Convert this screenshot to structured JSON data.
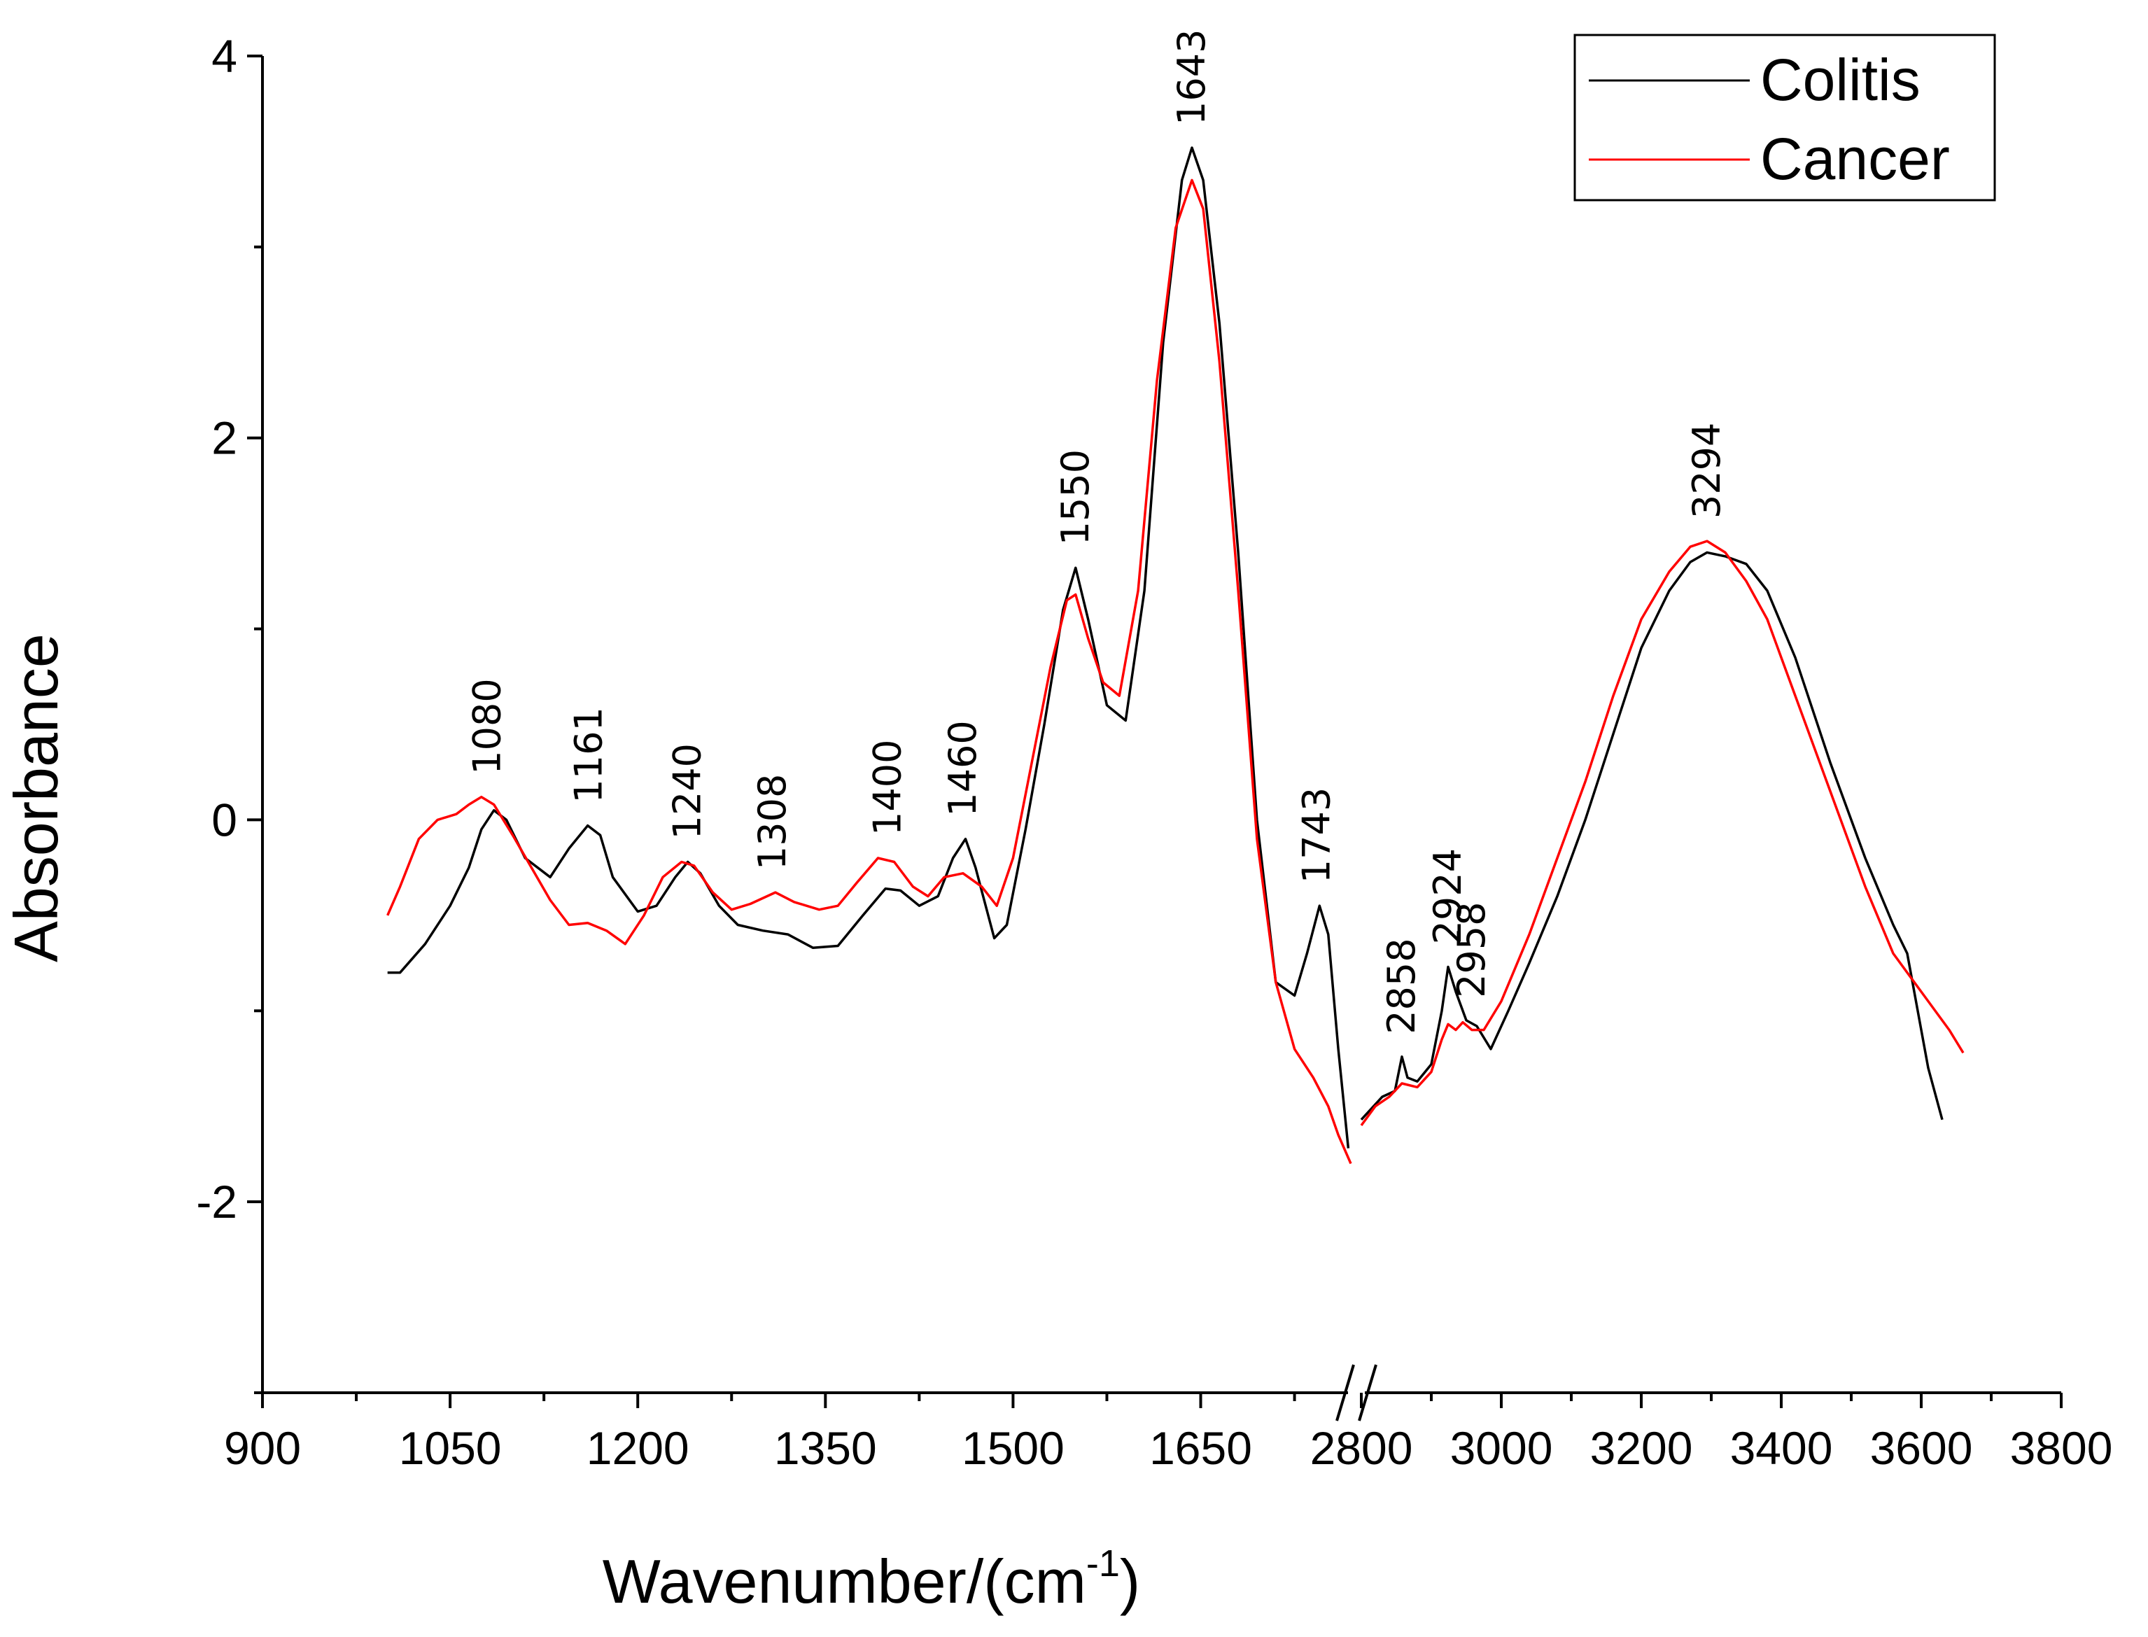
{
  "chart_data": {
    "type": "line",
    "title": "",
    "xlabel": "Wavenumber/(cm",
    "xlabel_superscript": "-1",
    "xlabel_close": ")",
    "ylabel": "Absorbance",
    "ylim": [
      -3,
      4
    ],
    "y_ticks": [
      "-2",
      "0",
      "2",
      "4"
    ],
    "x_break": true,
    "x_segments": [
      {
        "xlim": [
          900,
          1770
        ],
        "ticks": [
          "900",
          "1050",
          "1200",
          "1350",
          "1500",
          "1650"
        ]
      },
      {
        "xlim": [
          2800,
          3800
        ],
        "ticks": [
          "2800",
          "3000",
          "3200",
          "3400",
          "3600",
          "3800"
        ]
      }
    ],
    "legend": {
      "position": "top-right",
      "entries": [
        "Colitis",
        "Cancer"
      ]
    },
    "colors": {
      "Colitis": "#000000",
      "Cancer": "#ff0000"
    },
    "peak_labels": [
      "1080",
      "1161",
      "1240",
      "1308",
      "1400",
      "1460",
      "1550",
      "1643",
      "1743",
      "2858",
      "2924",
      "2958",
      "3294"
    ],
    "series": [
      {
        "name": "Colitis",
        "segment1": [
          [
            1000,
            -0.8
          ],
          [
            1010,
            -0.8
          ],
          [
            1030,
            -0.65
          ],
          [
            1050,
            -0.45
          ],
          [
            1065,
            -0.25
          ],
          [
            1075,
            -0.05
          ],
          [
            1085,
            0.05
          ],
          [
            1095,
            0.0
          ],
          [
            1110,
            -0.2
          ],
          [
            1130,
            -0.3
          ],
          [
            1145,
            -0.15
          ],
          [
            1160,
            -0.03
          ],
          [
            1170,
            -0.08
          ],
          [
            1180,
            -0.3
          ],
          [
            1200,
            -0.48
          ],
          [
            1215,
            -0.45
          ],
          [
            1230,
            -0.3
          ],
          [
            1240,
            -0.22
          ],
          [
            1250,
            -0.28
          ],
          [
            1265,
            -0.45
          ],
          [
            1280,
            -0.55
          ],
          [
            1300,
            -0.58
          ],
          [
            1320,
            -0.6
          ],
          [
            1340,
            -0.67
          ],
          [
            1360,
            -0.66
          ],
          [
            1380,
            -0.5
          ],
          [
            1398,
            -0.36
          ],
          [
            1410,
            -0.37
          ],
          [
            1425,
            -0.45
          ],
          [
            1440,
            -0.4
          ],
          [
            1452,
            -0.2
          ],
          [
            1462,
            -0.1
          ],
          [
            1470,
            -0.25
          ],
          [
            1485,
            -0.62
          ],
          [
            1495,
            -0.55
          ],
          [
            1510,
            -0.05
          ],
          [
            1525,
            0.5
          ],
          [
            1540,
            1.1
          ],
          [
            1550,
            1.32
          ],
          [
            1560,
            1.05
          ],
          [
            1575,
            0.6
          ],
          [
            1590,
            0.52
          ],
          [
            1605,
            1.2
          ],
          [
            1620,
            2.5
          ],
          [
            1635,
            3.35
          ],
          [
            1643,
            3.52
          ],
          [
            1652,
            3.35
          ],
          [
            1665,
            2.6
          ],
          [
            1680,
            1.4
          ],
          [
            1695,
            0.0
          ],
          [
            1710,
            -0.85
          ],
          [
            1725,
            -0.92
          ],
          [
            1735,
            -0.7
          ],
          [
            1745,
            -0.45
          ],
          [
            1752,
            -0.6
          ],
          [
            1760,
            -1.2
          ],
          [
            1768,
            -1.72
          ]
        ],
        "segment2": [
          [
            2800,
            -1.57
          ],
          [
            2830,
            -1.45
          ],
          [
            2848,
            -1.42
          ],
          [
            2858,
            -1.24
          ],
          [
            2866,
            -1.35
          ],
          [
            2880,
            -1.37
          ],
          [
            2900,
            -1.28
          ],
          [
            2915,
            -1.0
          ],
          [
            2924,
            -0.77
          ],
          [
            2935,
            -0.9
          ],
          [
            2950,
            -1.05
          ],
          [
            2965,
            -1.08
          ],
          [
            2985,
            -1.2
          ],
          [
            3010,
            -1.0
          ],
          [
            3040,
            -0.75
          ],
          [
            3080,
            -0.4
          ],
          [
            3120,
            0.0
          ],
          [
            3160,
            0.45
          ],
          [
            3200,
            0.9
          ],
          [
            3240,
            1.2
          ],
          [
            3270,
            1.35
          ],
          [
            3294,
            1.4
          ],
          [
            3320,
            1.38
          ],
          [
            3350,
            1.34
          ],
          [
            3380,
            1.2
          ],
          [
            3420,
            0.85
          ],
          [
            3470,
            0.3
          ],
          [
            3520,
            -0.2
          ],
          [
            3560,
            -0.55
          ],
          [
            3580,
            -0.7
          ],
          [
            3595,
            -1.0
          ],
          [
            3610,
            -1.3
          ],
          [
            3630,
            -1.57
          ]
        ]
      },
      {
        "name": "Cancer",
        "segment1": [
          [
            1000,
            -0.5
          ],
          [
            1010,
            -0.35
          ],
          [
            1025,
            -0.1
          ],
          [
            1040,
            0.0
          ],
          [
            1055,
            0.03
          ],
          [
            1065,
            0.08
          ],
          [
            1075,
            0.12
          ],
          [
            1085,
            0.08
          ],
          [
            1100,
            -0.08
          ],
          [
            1115,
            -0.25
          ],
          [
            1130,
            -0.42
          ],
          [
            1145,
            -0.55
          ],
          [
            1160,
            -0.54
          ],
          [
            1175,
            -0.58
          ],
          [
            1190,
            -0.65
          ],
          [
            1205,
            -0.5
          ],
          [
            1220,
            -0.3
          ],
          [
            1235,
            -0.22
          ],
          [
            1245,
            -0.24
          ],
          [
            1260,
            -0.38
          ],
          [
            1275,
            -0.47
          ],
          [
            1290,
            -0.44
          ],
          [
            1310,
            -0.38
          ],
          [
            1325,
            -0.43
          ],
          [
            1345,
            -0.47
          ],
          [
            1360,
            -0.45
          ],
          [
            1375,
            -0.33
          ],
          [
            1392,
            -0.2
          ],
          [
            1405,
            -0.22
          ],
          [
            1420,
            -0.35
          ],
          [
            1432,
            -0.4
          ],
          [
            1445,
            -0.3
          ],
          [
            1460,
            -0.28
          ],
          [
            1475,
            -0.35
          ],
          [
            1487,
            -0.45
          ],
          [
            1500,
            -0.2
          ],
          [
            1515,
            0.3
          ],
          [
            1530,
            0.8
          ],
          [
            1543,
            1.15
          ],
          [
            1550,
            1.18
          ],
          [
            1560,
            0.95
          ],
          [
            1572,
            0.72
          ],
          [
            1585,
            0.65
          ],
          [
            1600,
            1.2
          ],
          [
            1615,
            2.3
          ],
          [
            1630,
            3.1
          ],
          [
            1643,
            3.35
          ],
          [
            1652,
            3.2
          ],
          [
            1665,
            2.4
          ],
          [
            1680,
            1.2
          ],
          [
            1695,
            -0.1
          ],
          [
            1710,
            -0.85
          ],
          [
            1725,
            -1.2
          ],
          [
            1740,
            -1.35
          ],
          [
            1752,
            -1.5
          ],
          [
            1760,
            -1.65
          ],
          [
            1770,
            -1.8
          ]
        ],
        "segment2": [
          [
            2800,
            -1.6
          ],
          [
            2820,
            -1.5
          ],
          [
            2840,
            -1.45
          ],
          [
            2858,
            -1.38
          ],
          [
            2880,
            -1.4
          ],
          [
            2900,
            -1.32
          ],
          [
            2915,
            -1.15
          ],
          [
            2924,
            -1.07
          ],
          [
            2935,
            -1.1
          ],
          [
            2945,
            -1.06
          ],
          [
            2958,
            -1.1
          ],
          [
            2975,
            -1.1
          ],
          [
            3000,
            -0.95
          ],
          [
            3040,
            -0.6
          ],
          [
            3080,
            -0.2
          ],
          [
            3120,
            0.2
          ],
          [
            3160,
            0.65
          ],
          [
            3200,
            1.05
          ],
          [
            3240,
            1.3
          ],
          [
            3270,
            1.43
          ],
          [
            3294,
            1.46
          ],
          [
            3320,
            1.4
          ],
          [
            3350,
            1.25
          ],
          [
            3380,
            1.05
          ],
          [
            3420,
            0.65
          ],
          [
            3470,
            0.15
          ],
          [
            3520,
            -0.35
          ],
          [
            3560,
            -0.7
          ],
          [
            3600,
            -0.9
          ],
          [
            3640,
            -1.1
          ],
          [
            3660,
            -1.22
          ]
        ]
      }
    ]
  }
}
